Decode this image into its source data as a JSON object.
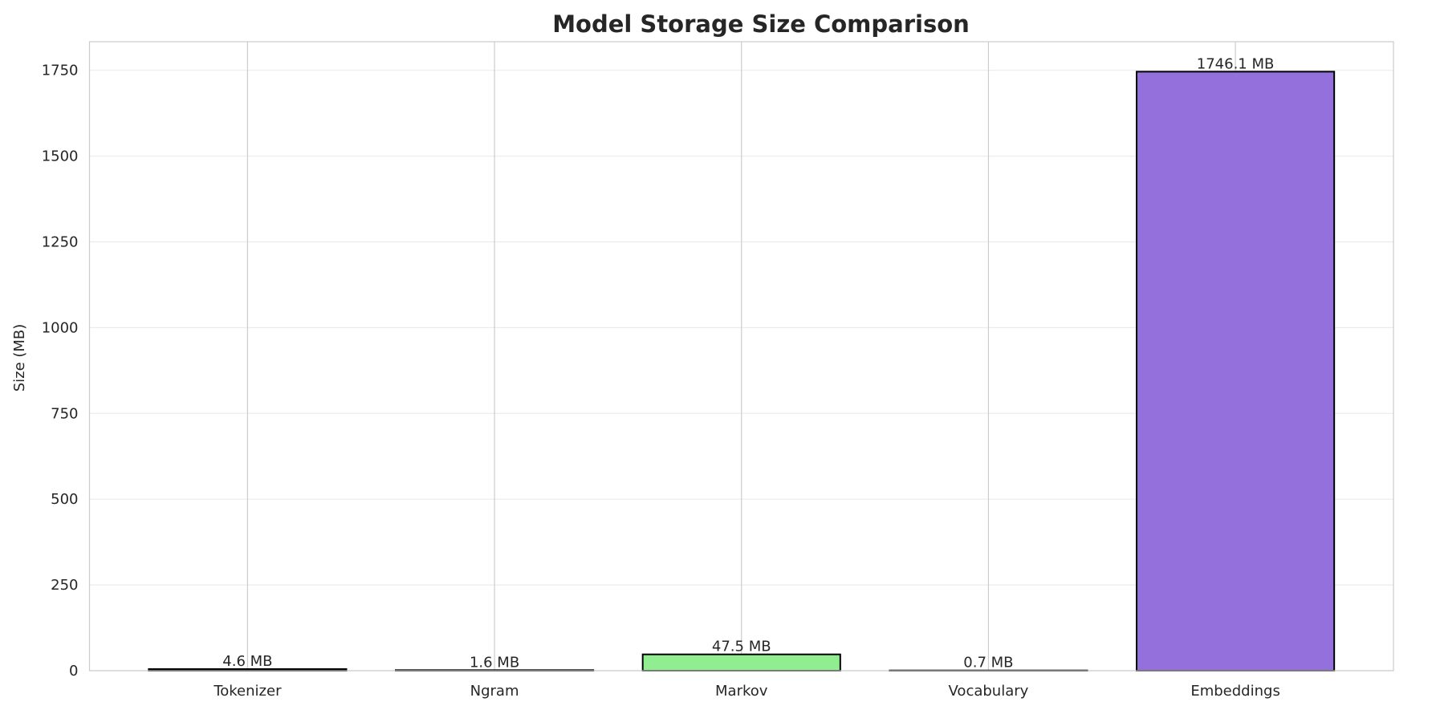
{
  "chart_data": {
    "type": "bar",
    "title": "Model Storage Size Comparison",
    "xlabel": "",
    "ylabel": "Size (MB)",
    "categories": [
      "Tokenizer",
      "Ngram",
      "Markov",
      "Vocabulary",
      "Embeddings"
    ],
    "values": [
      4.6,
      1.6,
      47.5,
      0.7,
      1746.1
    ],
    "data_labels": [
      "4.6 MB",
      "1.6 MB",
      "47.5 MB",
      "0.7 MB",
      "1746.1 MB"
    ],
    "colors": [
      "#87CEEB",
      "#F08080",
      "#90EE90",
      "#FFD700",
      "#9370DB"
    ],
    "ylim": [
      0,
      1833.4
    ],
    "yticks": [
      0,
      250,
      500,
      750,
      1000,
      1250,
      1500,
      1750
    ],
    "grid": true
  }
}
